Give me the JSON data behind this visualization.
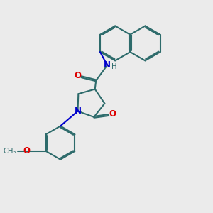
{
  "bg_color": "#ebebeb",
  "bond_color": "#2d6b6b",
  "n_color": "#0000cc",
  "o_color": "#dd0000",
  "lw": 1.5,
  "fs": 8.5,
  "xlim": [
    0,
    10
  ],
  "ylim": [
    0,
    10
  ]
}
